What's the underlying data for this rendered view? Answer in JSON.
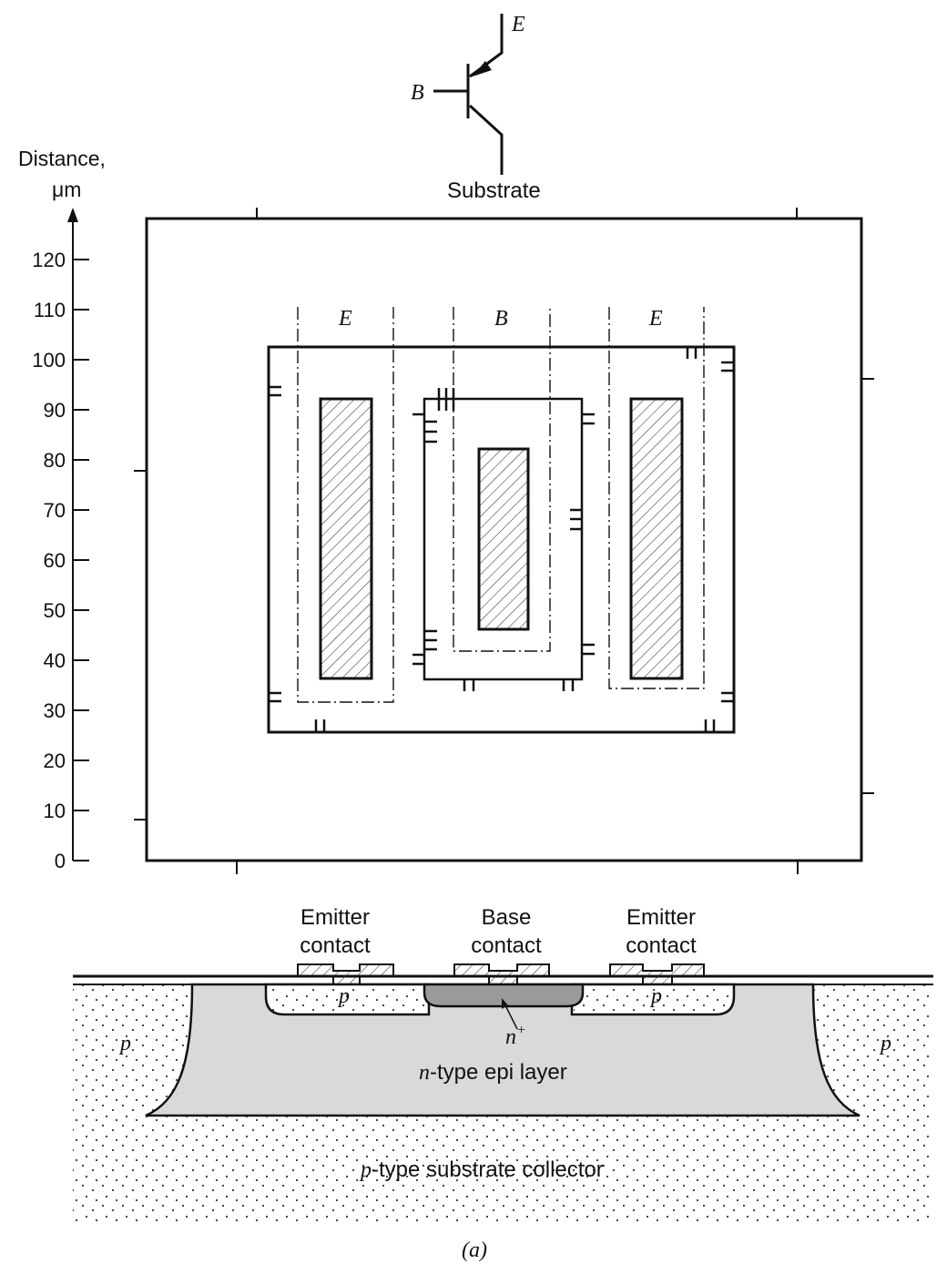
{
  "symbol": {
    "emitter_label": "E",
    "base_label": "B",
    "collector_label": "Substrate"
  },
  "axis": {
    "label_line1": "Distance,",
    "label_line2": "μm",
    "ticks": [
      "0",
      "10",
      "20",
      "30",
      "40",
      "50",
      "60",
      "70",
      "80",
      "90",
      "100",
      "110",
      "120"
    ]
  },
  "layout_labels": {
    "left": "E",
    "center": "B",
    "right": "E"
  },
  "cross_section": {
    "emitter_contact_left_1": "Emitter",
    "emitter_contact_left_2": "contact",
    "base_contact_1": "Base",
    "base_contact_2": "contact",
    "emitter_contact_right_1": "Emitter",
    "emitter_contact_right_2": "contact",
    "p_left_emitter": "p",
    "p_right_emitter": "p",
    "n_plus_base": "n",
    "n_plus_sup": "+",
    "p_isolation_left": "p",
    "p_isolation_right": "p",
    "epi_italic": "n",
    "epi_rest": "-type epi layer",
    "substrate_italic": "p",
    "substrate_rest": "-type substrate collector"
  },
  "caption": "(a)",
  "colors": {
    "epi_fill": "#d9d9d9",
    "n_plus_fill": "#9a9a9a",
    "line": "#111111"
  }
}
